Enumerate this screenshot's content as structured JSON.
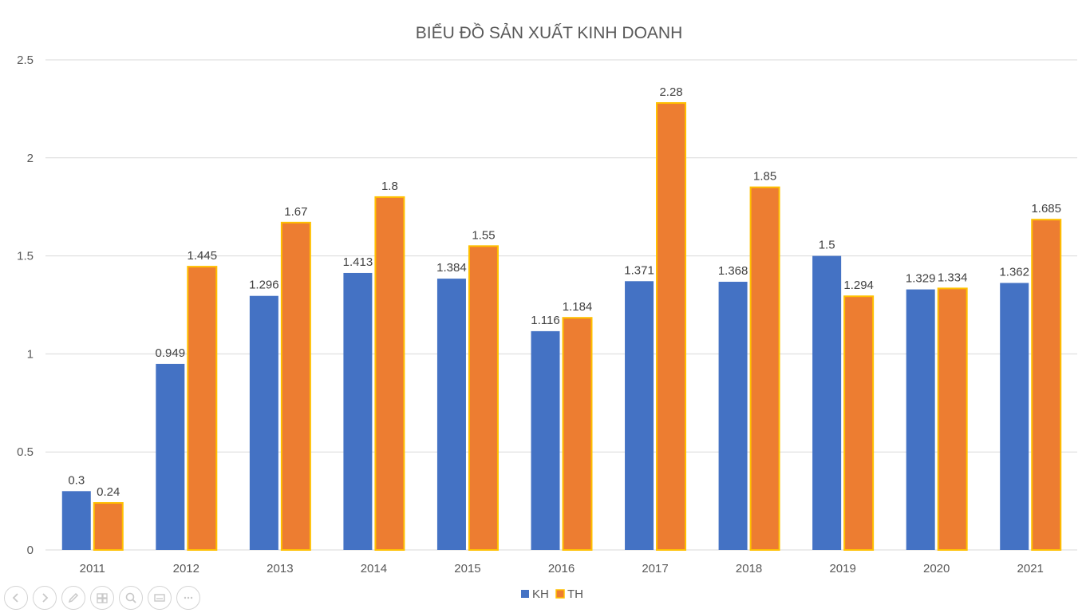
{
  "chart_data": {
    "type": "bar",
    "title": "BIỂU ĐỒ SẢN XUẤT KINH DOANH",
    "categories": [
      "2011",
      "2012",
      "2013",
      "2014",
      "2015",
      "2016",
      "2017",
      "2018",
      "2019",
      "2020",
      "2021"
    ],
    "series": [
      {
        "name": "KH",
        "color": "#4472C4",
        "values": [
          0.3,
          0.949,
          1.296,
          1.413,
          1.384,
          1.116,
          1.371,
          1.368,
          1.5,
          1.329,
          1.362
        ]
      },
      {
        "name": "TH",
        "color": "#ED7D31",
        "outline": "#FFC000",
        "values": [
          0.24,
          1.445,
          1.67,
          1.8,
          1.55,
          1.184,
          2.28,
          1.85,
          1.294,
          1.334,
          1.685
        ]
      }
    ],
    "ylim": [
      0,
      2.5
    ],
    "yticks": [
      "0",
      "0.5",
      "1",
      "1.5",
      "2",
      "2.5"
    ],
    "grid": true,
    "legend": "bottom"
  },
  "toolbar": [
    {
      "name": "previous-slide-button",
      "icon": "arrow-left-icon"
    },
    {
      "name": "next-slide-button",
      "icon": "arrow-right-icon"
    },
    {
      "name": "pen-button",
      "icon": "pen-icon"
    },
    {
      "name": "see-all-slides-button",
      "icon": "slides-icon"
    },
    {
      "name": "zoom-button",
      "icon": "magnifier-icon"
    },
    {
      "name": "subtitles-button",
      "icon": "subtitles-icon"
    },
    {
      "name": "more-options-button",
      "icon": "ellipsis-icon"
    }
  ]
}
